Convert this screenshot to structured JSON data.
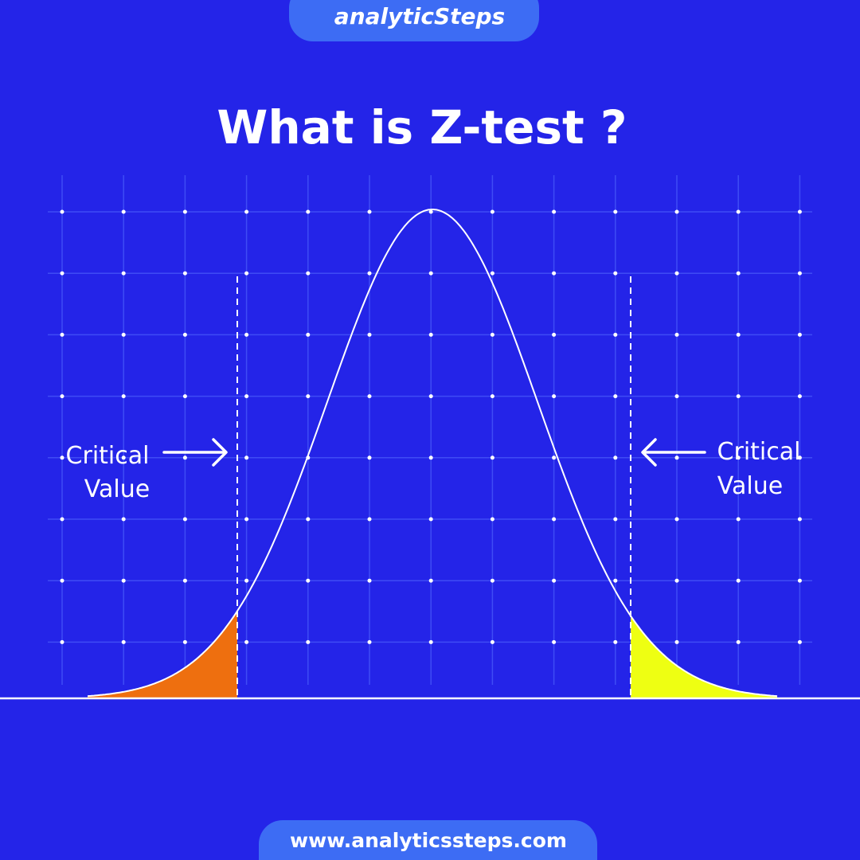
{
  "logo": "analyticSteps",
  "title": "What is Z-test ?",
  "annotations": [
    {
      "lines": [
        "Critical",
        "Value"
      ]
    },
    {
      "lines": [
        "Critical",
        "Value"
      ]
    }
  ],
  "footer": "www.analyticssteps.com"
}
